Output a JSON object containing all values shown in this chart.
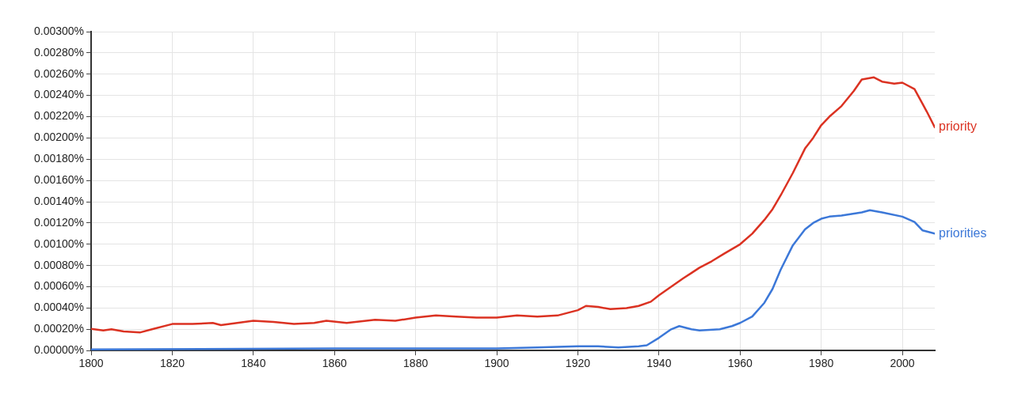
{
  "chart_data": {
    "type": "line",
    "xlim": [
      1800,
      2008
    ],
    "xticks": [
      1800,
      1820,
      1840,
      1860,
      1880,
      1900,
      1920,
      1940,
      1960,
      1980,
      2000
    ],
    "ylim": [
      0,
      0.003
    ],
    "yticks": [
      {
        "value": 0,
        "label": "0.00000%"
      },
      {
        "value": 0.0002,
        "label": "0.00020%"
      },
      {
        "value": 0.0004,
        "label": "0.00040%"
      },
      {
        "value": 0.0006,
        "label": "0.00060%"
      },
      {
        "value": 0.0008,
        "label": "0.00080%"
      },
      {
        "value": 0.001,
        "label": "0.00100%"
      },
      {
        "value": 0.0012,
        "label": "0.00120%"
      },
      {
        "value": 0.0014,
        "label": "0.00140%"
      },
      {
        "value": 0.0016,
        "label": "0.00160%"
      },
      {
        "value": 0.0018,
        "label": "0.00180%"
      },
      {
        "value": 0.002,
        "label": "0.00200%"
      },
      {
        "value": 0.0022,
        "label": "0.00220%"
      },
      {
        "value": 0.0024,
        "label": "0.00240%"
      },
      {
        "value": 0.0026,
        "label": "0.00260%"
      },
      {
        "value": 0.0028,
        "label": "0.00280%"
      },
      {
        "value": 0.003,
        "label": "0.00300%"
      }
    ],
    "grid": true,
    "legend": false,
    "marker": "none",
    "line_style": "solid",
    "series": [
      {
        "name": "priority",
        "color": "#db3222",
        "x": [
          1800,
          1803,
          1805,
          1808,
          1812,
          1815,
          1820,
          1825,
          1830,
          1832,
          1840,
          1845,
          1850,
          1855,
          1858,
          1863,
          1870,
          1875,
          1880,
          1885,
          1890,
          1895,
          1900,
          1905,
          1910,
          1915,
          1920,
          1922,
          1925,
          1928,
          1932,
          1935,
          1938,
          1940,
          1943,
          1946,
          1948,
          1950,
          1953,
          1956,
          1960,
          1963,
          1966,
          1968,
          1970,
          1973,
          1976,
          1978,
          1980,
          1982,
          1985,
          1988,
          1990,
          1993,
          1995,
          1998,
          2000,
          2003,
          2005,
          2006,
          2008
        ],
        "values": [
          0.000204,
          0.00019,
          0.0002,
          0.00018,
          0.00017,
          0.0002,
          0.00025,
          0.00025,
          0.00026,
          0.00024,
          0.00028,
          0.00027,
          0.00025,
          0.00026,
          0.00028,
          0.00026,
          0.00029,
          0.00028,
          0.00031,
          0.00033,
          0.00032,
          0.00031,
          0.00031,
          0.00033,
          0.00032,
          0.00033,
          0.00038,
          0.00042,
          0.00041,
          0.00039,
          0.0004,
          0.00042,
          0.00046,
          0.00052,
          0.0006,
          0.00068,
          0.00073,
          0.00078,
          0.00084,
          0.00091,
          0.001,
          0.0011,
          0.00123,
          0.00133,
          0.00146,
          0.00167,
          0.0019,
          0.002,
          0.00212,
          0.0022,
          0.0023,
          0.00244,
          0.00255,
          0.00257,
          0.00253,
          0.00251,
          0.00252,
          0.00246,
          0.00232,
          0.00225,
          0.0021
        ]
      },
      {
        "name": "priorities",
        "color": "#3c78d8",
        "x": [
          1800,
          1860,
          1900,
          1910,
          1920,
          1925,
          1930,
          1935,
          1937,
          1940,
          1943,
          1945,
          1948,
          1950,
          1955,
          1958,
          1960,
          1963,
          1966,
          1968,
          1970,
          1973,
          1976,
          1978,
          1980,
          1982,
          1985,
          1990,
          1992,
          1995,
          2000,
          2003,
          2005,
          2008
        ],
        "values": [
          1e-05,
          2e-05,
          2e-05,
          3e-05,
          4e-05,
          4e-05,
          3e-05,
          4e-05,
          5e-05,
          0.00012,
          0.0002,
          0.00023,
          0.0002,
          0.00019,
          0.0002,
          0.00023,
          0.00026,
          0.00032,
          0.00045,
          0.00058,
          0.00076,
          0.00099,
          0.00114,
          0.0012,
          0.00124,
          0.00126,
          0.00127,
          0.0013,
          0.00132,
          0.0013,
          0.00126,
          0.00121,
          0.00113,
          0.0011
        ]
      }
    ]
  }
}
